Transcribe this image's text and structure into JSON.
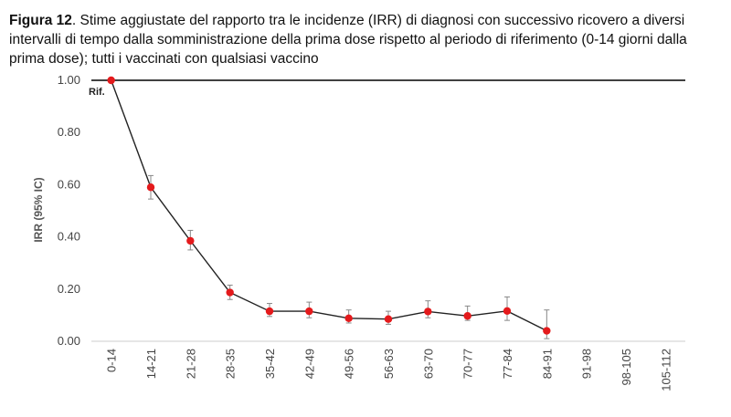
{
  "caption": {
    "label": "Figura 12",
    "text": ". Stime aggiustate del rapporto tra le incidenze (IRR) di diagnosi con successivo ricovero a diversi intervalli di tempo dalla somministrazione della prima dose rispetto al periodo di riferimento (0-14 giorni dalla prima dose); tutti i vaccinati con qualsiasi vaccino"
  },
  "chart_data": {
    "type": "line",
    "ylabel": "IRR (95% IC)",
    "xlabel": "",
    "ylim": [
      0,
      1
    ],
    "yticks": [
      "1.00",
      "0.80",
      "0.60",
      "0.40",
      "0.20",
      "0.00"
    ],
    "reference_line": 1.0,
    "reference_label": "Rif.",
    "categories": [
      "0-14",
      "14-21",
      "21-28",
      "28-35",
      "35-42",
      "42-49",
      "49-56",
      "56-63",
      "63-70",
      "70-77",
      "77-84",
      "84-91",
      "91-98",
      "98-105",
      "105-112"
    ],
    "series": [
      {
        "values": [
          1.0,
          0.59,
          0.385,
          0.187,
          0.115,
          0.115,
          0.088,
          0.085,
          0.114,
          0.097,
          0.116,
          0.04,
          null,
          null,
          null
        ],
        "ci_low": [
          null,
          0.545,
          0.35,
          0.16,
          0.095,
          0.09,
          0.07,
          0.065,
          0.09,
          0.08,
          0.08,
          0.01,
          null,
          null,
          null
        ],
        "ci_high": [
          null,
          0.635,
          0.425,
          0.215,
          0.145,
          0.15,
          0.12,
          0.115,
          0.155,
          0.135,
          0.17,
          0.12,
          null,
          null,
          null
        ]
      }
    ],
    "colors": {
      "line": "#222222",
      "marker": "#e41a1c",
      "errorbar": "#888888",
      "axis": "#cccccc",
      "refline": "#000000"
    },
    "grid": false
  }
}
